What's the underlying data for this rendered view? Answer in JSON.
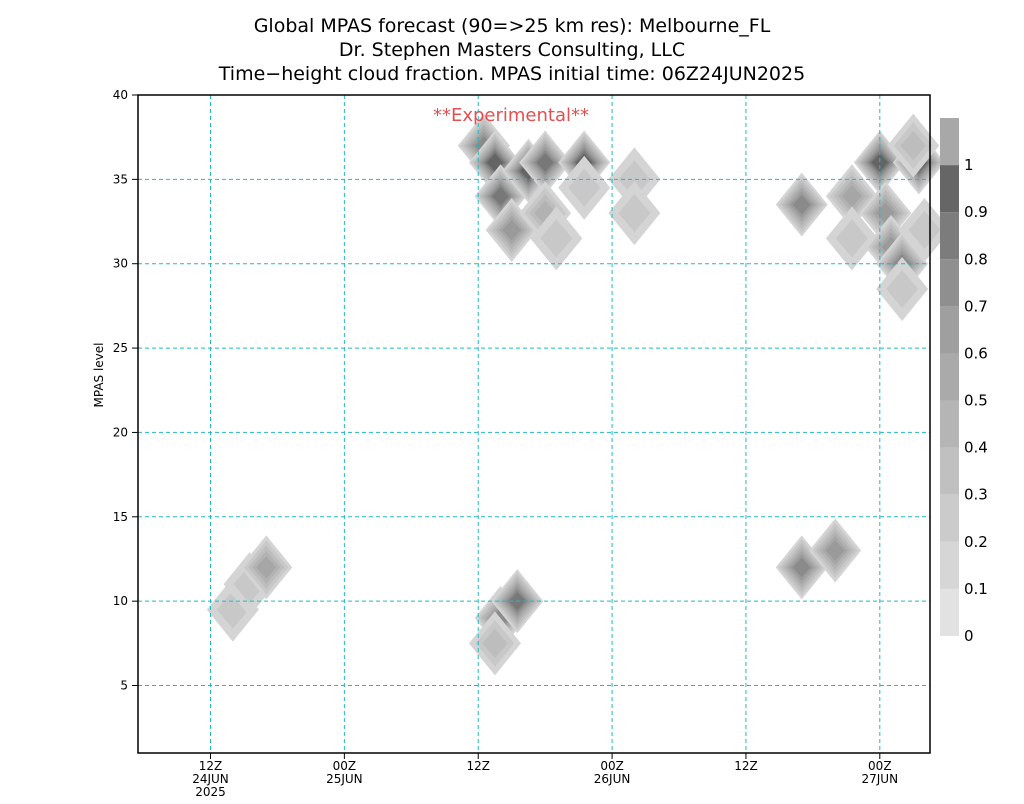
{
  "title_lines": [
    "Global MPAS forecast (90=>25 km res): Melbourne_FL",
    "Dr. Stephen Masters Consulting, LLC",
    "Time−height cloud fraction.   MPAS initial time: 06Z24JUN2025"
  ],
  "watermark": "**Experimental**",
  "colors": {
    "grid": "#20b8c8",
    "watermark": "#e05050",
    "axis": "#000000",
    "fill_levels": [
      "#e0e0e0",
      "#d4d4d4",
      "#c8c8c8",
      "#bdbdbd",
      "#b2b2b2",
      "#a6a6a6",
      "#9a9a9a",
      "#8a8a8a",
      "#787878",
      "#646464",
      "#505050"
    ]
  },
  "chart_data": {
    "type": "heatmap",
    "ylabel": "MPAS level",
    "ylim": [
      1,
      40
    ],
    "xlim_hours": [
      -0.5,
      70.5
    ],
    "y_ticks": [
      5,
      10,
      15,
      20,
      25,
      30,
      35,
      40
    ],
    "x_ticks": [
      {
        "hour": 6,
        "labels": [
          "12Z",
          "24JUN",
          "2025"
        ]
      },
      {
        "hour": 18,
        "labels": [
          "00Z",
          "25JUN"
        ]
      },
      {
        "hour": 30,
        "labels": [
          "12Z"
        ]
      },
      {
        "hour": 42,
        "labels": [
          "00Z",
          "26JUN"
        ]
      },
      {
        "hour": 54,
        "labels": [
          "12Z"
        ]
      },
      {
        "hour": 66,
        "labels": [
          "00Z",
          "27JUN"
        ]
      }
    ],
    "grid": true,
    "colorbar": {
      "levels": [
        0,
        0.1,
        0.2,
        0.3,
        0.4,
        0.5,
        0.6,
        0.7,
        0.8,
        0.9,
        1
      ],
      "labels": [
        "0",
        "0.1",
        "0.2",
        "0.3",
        "0.4",
        "0.5",
        "0.6",
        "0.7",
        "0.8",
        "0.9",
        "1"
      ],
      "position": "right"
    },
    "cloud_cells": [
      {
        "hour": 8,
        "level": 9.5,
        "value": 0.15
      },
      {
        "hour": 9.5,
        "level": 11,
        "value": 0.2
      },
      {
        "hour": 11,
        "level": 12,
        "value": 0.5
      },
      {
        "hour": 30.5,
        "level": 37,
        "value": 0.7
      },
      {
        "hour": 31.5,
        "level": 36,
        "value": 0.9
      },
      {
        "hour": 32,
        "level": 34,
        "value": 0.8
      },
      {
        "hour": 33,
        "level": 32,
        "value": 0.6
      },
      {
        "hour": 34.5,
        "level": 35.5,
        "value": 0.9
      },
      {
        "hour": 36,
        "level": 36,
        "value": 0.8
      },
      {
        "hour": 36,
        "level": 33,
        "value": 0.4
      },
      {
        "hour": 37,
        "level": 31.5,
        "value": 0.2
      },
      {
        "hour": 39.5,
        "level": 36,
        "value": 0.9
      },
      {
        "hour": 39.5,
        "level": 34.5,
        "value": 0.2
      },
      {
        "hour": 44,
        "level": 35,
        "value": 0.2
      },
      {
        "hour": 44,
        "level": 33,
        "value": 0.15
      },
      {
        "hour": 32,
        "level": 9,
        "value": 0.7
      },
      {
        "hour": 33.5,
        "level": 10,
        "value": 0.8
      },
      {
        "hour": 31.5,
        "level": 7.5,
        "value": 0.3
      },
      {
        "hour": 59,
        "level": 33.5,
        "value": 0.7
      },
      {
        "hour": 59,
        "level": 12,
        "value": 0.7
      },
      {
        "hour": 62,
        "level": 13,
        "value": 0.6
      },
      {
        "hour": 63.5,
        "level": 34,
        "value": 0.5
      },
      {
        "hour": 63.5,
        "level": 31.5,
        "value": 0.2
      },
      {
        "hour": 66,
        "level": 36,
        "value": 0.9
      },
      {
        "hour": 66.5,
        "level": 33,
        "value": 0.6
      },
      {
        "hour": 67,
        "level": 31,
        "value": 0.6
      },
      {
        "hour": 68,
        "level": 30,
        "value": 0.7
      },
      {
        "hour": 68,
        "level": 28.5,
        "value": 0.2
      },
      {
        "hour": 69.5,
        "level": 36,
        "value": 0.9
      },
      {
        "hour": 69,
        "level": 37,
        "value": 0.3
      },
      {
        "hour": 70,
        "level": 32,
        "value": 0.2
      }
    ]
  }
}
